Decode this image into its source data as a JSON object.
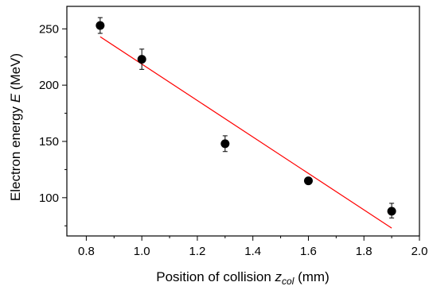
{
  "chart_data": {
    "type": "scatter",
    "xlabel": {
      "prefix": "Position of collision ",
      "var": "z",
      "sub": "col",
      "suffix": " (mm)"
    },
    "ylabel": {
      "prefix": "Electron energy ",
      "var": "E",
      "suffix": " (MeV)"
    },
    "xlim": [
      0.73,
      2.0
    ],
    "ylim": [
      66,
      270
    ],
    "xticks": [
      0.8,
      1.0,
      1.2,
      1.4,
      1.6,
      1.8,
      2.0
    ],
    "xtick_labels": [
      "0.8",
      "1.0",
      "1.2",
      "1.4",
      "1.6",
      "1.8",
      "2.0"
    ],
    "yticks": [
      100,
      150,
      200,
      250
    ],
    "ytick_labels": [
      "100",
      "150",
      "200",
      "250"
    ],
    "grid": false,
    "points": [
      {
        "x": 0.85,
        "y": 253,
        "err_low": 7,
        "err_high": 7
      },
      {
        "x": 1.0,
        "y": 223,
        "err_low": 9,
        "err_high": 9
      },
      {
        "x": 1.3,
        "y": 148,
        "err_low": 7,
        "err_high": 7
      },
      {
        "x": 1.6,
        "y": 115,
        "err_low": 2,
        "err_high": 2
      },
      {
        "x": 1.9,
        "y": 88,
        "err_low": 6,
        "err_high": 7
      }
    ],
    "fit_line": {
      "x": [
        0.85,
        1.9
      ],
      "y": [
        243,
        73
      ],
      "color": "#ff0000"
    },
    "marker_color": "#000000"
  }
}
